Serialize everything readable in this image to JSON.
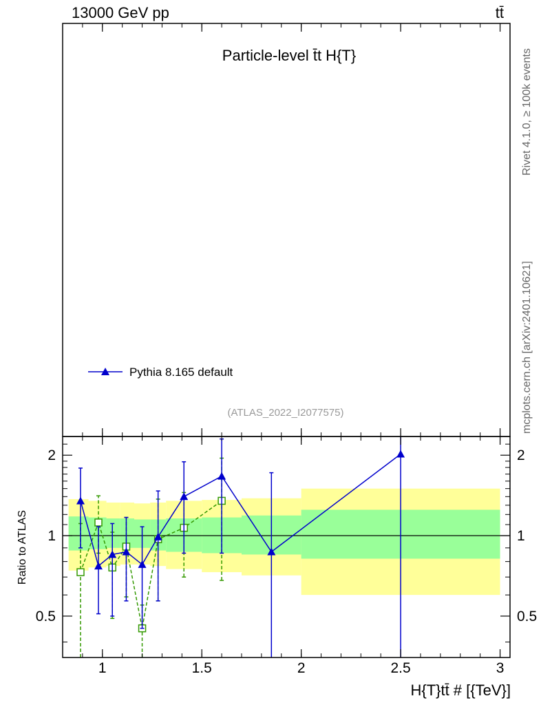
{
  "header": {
    "left": "13000 GeV pp",
    "right": "tt̄"
  },
  "side": {
    "rivet": "Rivet 4.1.0, ≥ 100k events",
    "mcplots": "mcplots.cern.ch [arXiv:2401.10621]"
  },
  "chart_data": {
    "type": "line",
    "title": "Particle-level t̄t  H{T}",
    "analysis_id": "(ATLAS_2022_I2077575)",
    "xlabel": "H{T}tt̄ # [{TeV}]",
    "ylabel": "Ratio to ATLAS",
    "xlim": [
      0.8,
      3.05
    ],
    "ylim": [
      0.35,
      2.35
    ],
    "y_scale": "log",
    "x_ticks": [
      "1",
      "1.5",
      "2",
      "2.5",
      "3"
    ],
    "y_ticks": [
      "0.5",
      "1",
      "2"
    ],
    "legend": {
      "position": "lower-left",
      "entries": [
        "Pythia 8.165 default"
      ]
    },
    "bands": {
      "bin_edges": [
        0.83,
        0.93,
        1.02,
        1.09,
        1.16,
        1.24,
        1.32,
        1.5,
        1.7,
        2.0,
        3.0
      ],
      "inner": [
        [
          0.88,
          1.18
        ],
        [
          0.89,
          1.17
        ],
        [
          0.9,
          1.16
        ],
        [
          0.9,
          1.16
        ],
        [
          0.9,
          1.15
        ],
        [
          0.88,
          1.15
        ],
        [
          0.87,
          1.16
        ],
        [
          0.86,
          1.17
        ],
        [
          0.85,
          1.19
        ],
        [
          0.82,
          1.25
        ]
      ],
      "outer": [
        [
          0.74,
          1.37
        ],
        [
          0.76,
          1.35
        ],
        [
          0.77,
          1.33
        ],
        [
          0.78,
          1.33
        ],
        [
          0.78,
          1.32
        ],
        [
          0.77,
          1.33
        ],
        [
          0.75,
          1.35
        ],
        [
          0.73,
          1.36
        ],
        [
          0.71,
          1.38
        ],
        [
          0.6,
          1.5
        ]
      ]
    },
    "reference_line": 1.0,
    "series": [
      {
        "name": "Pythia 8.165 default",
        "color": "#0000cc",
        "marker": "triangle",
        "x": [
          0.89,
          0.98,
          1.05,
          1.12,
          1.2,
          1.28,
          1.41,
          1.6,
          1.85,
          2.5
        ],
        "values": [
          1.35,
          0.77,
          0.85,
          0.87,
          0.78,
          0.99,
          1.4,
          1.67,
          0.87,
          2.02
        ],
        "err_low": [
          0.45,
          0.26,
          0.35,
          0.3,
          0.33,
          0.42,
          0.54,
          0.81,
          0.55,
          1.7
        ],
        "err_high": [
          0.44,
          0.31,
          0.26,
          0.3,
          0.3,
          0.48,
          0.49,
          0.63,
          0.85,
          0.35
        ]
      },
      {
        "name": "",
        "color": "#339900",
        "marker": "open-square",
        "dashed": true,
        "x": [
          0.89,
          0.98,
          1.05,
          1.12,
          1.2,
          1.28,
          1.41,
          1.6
        ],
        "values": [
          0.73,
          1.12,
          0.76,
          0.91,
          0.45,
          0.97,
          1.07,
          1.35
        ],
        "err_low": [
          0.38,
          0.26,
          0.27,
          0.32,
          0.1,
          0.4,
          0.37,
          0.67
        ],
        "err_high": [
          0.38,
          0.29,
          0.27,
          0.26,
          0.1,
          0.4,
          0.38,
          0.6
        ]
      }
    ]
  }
}
